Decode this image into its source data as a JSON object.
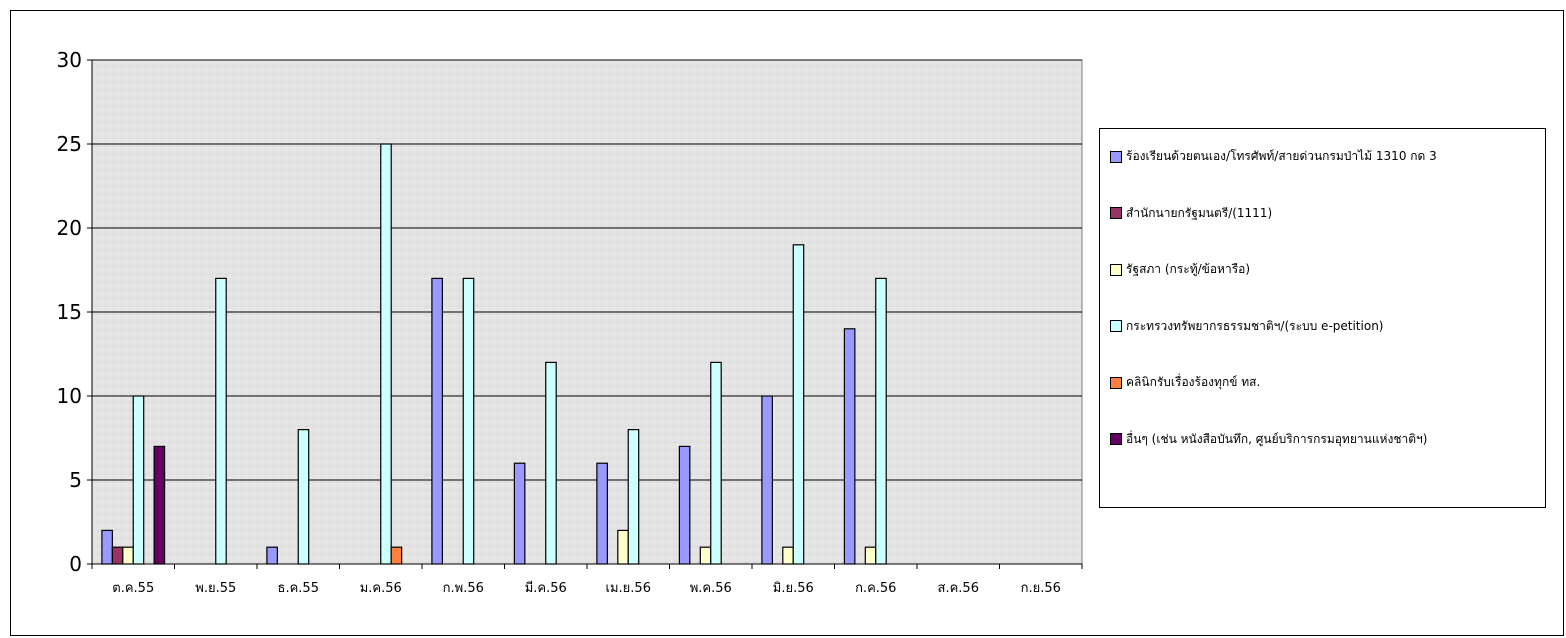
{
  "chart_data": {
    "type": "bar",
    "categories": [
      "ต.ค.55",
      "พ.ย.55",
      "ธ.ค.55",
      "ม.ค.56",
      "ก.พ.56",
      "มี.ค.56",
      "เม.ย.56",
      "พ.ค.56",
      "มิ.ย.56",
      "ก.ค.56",
      "ส.ค.56",
      "ก.ย.56"
    ],
    "ylim": [
      0,
      30
    ],
    "yticks": [
      0,
      5,
      10,
      15,
      20,
      25,
      30
    ],
    "grid": "horizontal",
    "legend_position": "right",
    "series": [
      {
        "name": "ร้องเรียนด้วยตนเอง/โทรศัพท์/สายด่วนกรมป่าไม้ 1310 กด 3",
        "color": "#9999ff",
        "values": [
          2,
          0,
          1,
          0,
          17,
          6,
          6,
          7,
          10,
          14,
          0,
          0
        ]
      },
      {
        "name": "สำนักนายกรัฐมนตรี/(1111)",
        "color": "#993366",
        "values": [
          1,
          0,
          0,
          0,
          0,
          0,
          0,
          0,
          0,
          0,
          0,
          0
        ]
      },
      {
        "name": "รัฐสภา (กระทู้/ข้อหารือ)",
        "color": "#ffffcc",
        "values": [
          1,
          0,
          0,
          0,
          0,
          0,
          2,
          1,
          1,
          1,
          0,
          0
        ]
      },
      {
        "name": "กระทรวงทรัพยากรธรรมชาติฯ/(ระบบ e-petition)",
        "color": "#ccffff",
        "values": [
          10,
          17,
          8,
          25,
          17,
          12,
          8,
          12,
          19,
          17,
          0,
          0
        ]
      },
      {
        "name": "คลินิกรับเรื่องร้องทุกข์ ทส.",
        "color": "#ff8040",
        "values": [
          0,
          0,
          0,
          1,
          0,
          0,
          0,
          0,
          0,
          0,
          0,
          0
        ]
      },
      {
        "name": "อื่นๆ (เช่น หนังสือบันทึก, ศูนย์บริการกรมอุทยานแห่งชาติฯ)",
        "color": "#660066",
        "values": [
          7,
          0,
          0,
          0,
          0,
          0,
          0,
          0,
          0,
          0,
          0,
          0
        ]
      }
    ]
  }
}
